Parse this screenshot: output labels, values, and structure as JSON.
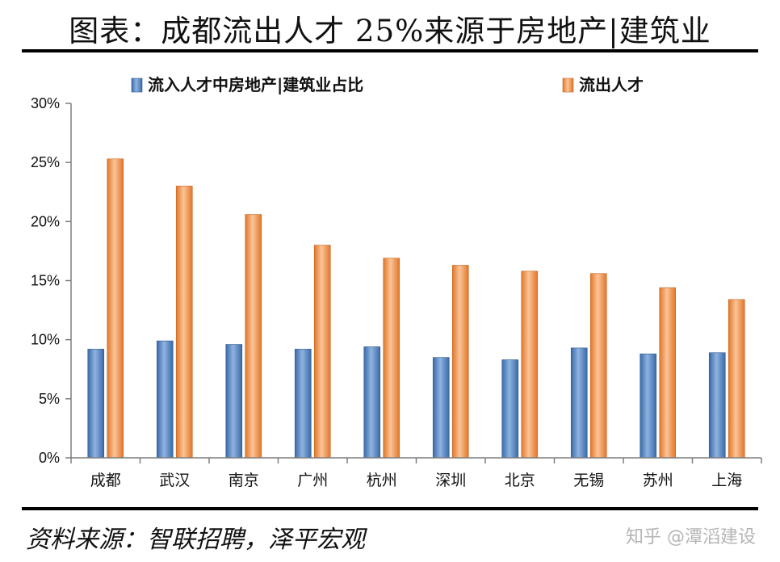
{
  "header": {
    "title": "图表：成都流出人才 25%来源于房地产|建筑业"
  },
  "footer": {
    "source": "资料来源：智联招聘，泽平宏观",
    "watermark": "知乎 @潭滔建设"
  },
  "colors": {
    "series1": "#4f81bd",
    "series2": "#f79646",
    "axis": "#7f7f7f"
  },
  "chart_data": {
    "type": "bar",
    "title": "",
    "xlabel": "",
    "ylabel": "",
    "ylim": [
      0,
      30
    ],
    "y_ticks": [
      "0%",
      "5%",
      "10%",
      "15%",
      "20%",
      "25%",
      "30%"
    ],
    "legend": "top",
    "grid": false,
    "categories": [
      "成都",
      "武汉",
      "南京",
      "广州",
      "杭州",
      "深圳",
      "北京",
      "无锡",
      "苏州",
      "上海"
    ],
    "series": [
      {
        "name": "流入人才中房地产|建筑业占比",
        "values": [
          9.2,
          9.9,
          9.6,
          9.2,
          9.4,
          8.5,
          8.3,
          9.3,
          8.8,
          8.9
        ]
      },
      {
        "name": "流出人才",
        "values": [
          25.3,
          23.0,
          20.6,
          18.0,
          16.9,
          16.3,
          15.8,
          15.6,
          14.4,
          13.4
        ]
      }
    ]
  }
}
